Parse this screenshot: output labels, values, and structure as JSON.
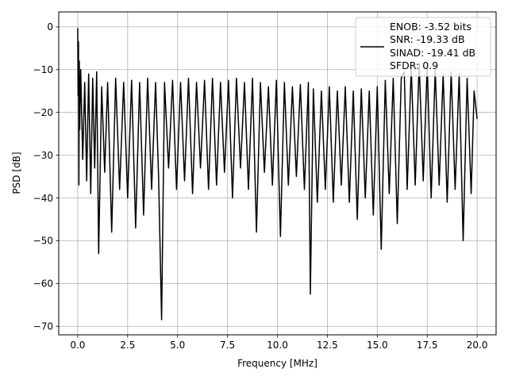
{
  "chart_data": {
    "type": "line",
    "xlabel": "Frequency [MHz]",
    "ylabel": "PSD [dB]",
    "xlim": [
      -0.95,
      20.95
    ],
    "ylim": [
      -72,
      3.5
    ],
    "xticks": [
      0.0,
      2.5,
      5.0,
      7.5,
      10.0,
      12.5,
      15.0,
      17.5,
      20.0
    ],
    "xtick_labels": [
      "0.0",
      "2.5",
      "5.0",
      "7.5",
      "10.0",
      "12.5",
      "15.0",
      "17.5",
      "20.0"
    ],
    "yticks": [
      0,
      -10,
      -20,
      -30,
      -40,
      -50,
      -60,
      -70
    ],
    "ytick_labels": [
      "0",
      "−10",
      "−20",
      "−30",
      "−40",
      "−50",
      "−60",
      "−70"
    ],
    "grid": true,
    "legend_position": "upper right",
    "legend_lines": [
      "ENOB: -3.52 bits",
      "SNR: -19.33 dB",
      "SINAD: -19.41 dB",
      "SFDR: 0.9"
    ],
    "series_color": "#000000",
    "series": [
      {
        "x": [
          0.0,
          0.02,
          0.04,
          0.06,
          0.08,
          0.1,
          0.15,
          0.25,
          0.35,
          0.45,
          0.55,
          0.65,
          0.75,
          0.85,
          0.95,
          1.05,
          1.2,
          1.35,
          1.5,
          1.7,
          1.9,
          2.1,
          2.3,
          2.5,
          2.7,
          2.9,
          3.1,
          3.3,
          3.5,
          3.7,
          3.9,
          4.05,
          4.2,
          4.35,
          4.55,
          4.75,
          4.95,
          5.15,
          5.35,
          5.55,
          5.75,
          5.95,
          6.15,
          6.35,
          6.55,
          6.75,
          6.95,
          7.15,
          7.35,
          7.55,
          7.75,
          7.95,
          8.15,
          8.35,
          8.55,
          8.75,
          8.95,
          9.15,
          9.35,
          9.55,
          9.75,
          9.95,
          10.15,
          10.35,
          10.55,
          10.75,
          10.95,
          11.15,
          11.35,
          11.55,
          11.65,
          11.8,
          12.0,
          12.2,
          12.4,
          12.6,
          12.8,
          13.0,
          13.2,
          13.4,
          13.6,
          13.8,
          14.0,
          14.2,
          14.4,
          14.6,
          14.8,
          15.0,
          15.2,
          15.4,
          15.6,
          15.8,
          16.0,
          16.2,
          16.35,
          16.5,
          16.7,
          16.9,
          17.1,
          17.3,
          17.5,
          17.7,
          17.9,
          18.1,
          18.3,
          18.5,
          18.7,
          18.9,
          19.1,
          19.3,
          19.5,
          19.7,
          19.85,
          20.0
        ],
        "y": [
          -0.3,
          -16.0,
          -3.5,
          -37.0,
          -8.0,
          -24.0,
          -10.0,
          -31.0,
          -13.0,
          -36.0,
          -11.0,
          -39.0,
          -12.0,
          -33.0,
          -10.5,
          -53.0,
          -14.0,
          -34.0,
          -13.0,
          -48.0,
          -12.0,
          -38.0,
          -13.0,
          -40.0,
          -12.5,
          -47.0,
          -13.0,
          -44.0,
          -12.0,
          -38.0,
          -13.0,
          -35.0,
          -68.5,
          -13.0,
          -33.0,
          -12.5,
          -38.0,
          -13.0,
          -36.0,
          -12.0,
          -39.0,
          -13.0,
          -33.0,
          -12.5,
          -38.0,
          -12.0,
          -37.0,
          -13.0,
          -34.0,
          -12.5,
          -40.0,
          -12.0,
          -33.0,
          -13.0,
          -38.0,
          -12.0,
          -48.0,
          -13.0,
          -34.0,
          -14.0,
          -37.0,
          -12.5,
          -49.0,
          -13.0,
          -37.0,
          -14.0,
          -35.0,
          -13.5,
          -38.0,
          -13.0,
          -62.5,
          -14.5,
          -41.0,
          -15.0,
          -38.0,
          -14.0,
          -41.0,
          -15.0,
          -37.0,
          -14.0,
          -41.0,
          -15.0,
          -45.0,
          -14.5,
          -40.0,
          -15.0,
          -44.0,
          -14.0,
          -52.0,
          -12.5,
          -39.0,
          -12.0,
          -46.0,
          -12.0,
          -10.5,
          -38.0,
          -9.5,
          -37.0,
          -8.5,
          -36.0,
          -9.0,
          -40.0,
          -10.0,
          -37.0,
          -11.0,
          -41.0,
          -10.5,
          -38.0,
          -11.0,
          -50.0,
          -12.0,
          -39.0,
          -15.0,
          -21.5
        ]
      }
    ]
  }
}
